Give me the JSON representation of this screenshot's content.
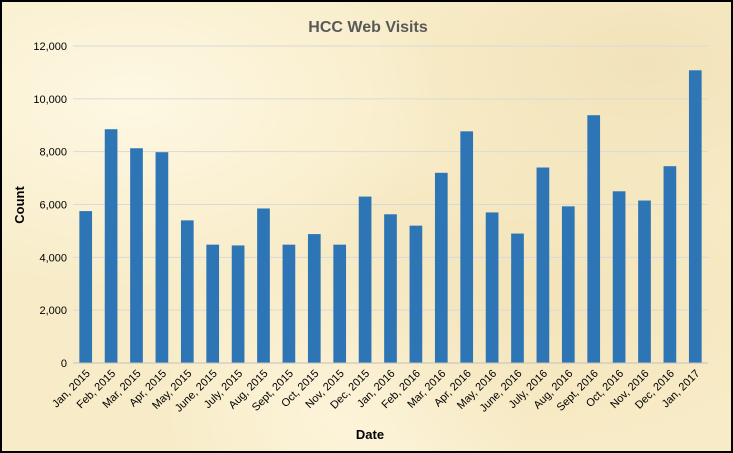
{
  "chart_data": {
    "type": "bar",
    "title": "HCC Web Visits",
    "xlabel": "Date",
    "ylabel": "Count",
    "ylim": [
      0,
      12000
    ],
    "yticks": [
      0,
      2000,
      4000,
      6000,
      8000,
      10000,
      12000
    ],
    "ytick_labels": [
      "0",
      "2,000",
      "4,000",
      "6,000",
      "8,000",
      "10,000",
      "12,000"
    ],
    "grid": true,
    "legend": "none",
    "bar_color": "#2e75b6",
    "categories": [
      "Jan, 2015",
      "Feb, 2015",
      "Mar, 2015",
      "Apr, 2015",
      "May, 2015",
      "June, 2015",
      "July, 2015",
      "Aug, 2015",
      "Sept, 2015",
      "Oct, 2015",
      "Nov, 2015",
      "Dec, 2015",
      "Jan, 2016",
      "Feb, 2016",
      "Mar, 2016",
      "Apr, 2016",
      "May, 2016",
      "June, 2016",
      "July, 2016",
      "Aug, 2016",
      "Sept, 2016",
      "Oct, 2016",
      "Nov, 2016",
      "Dec, 2016",
      "Jan, 2017"
    ],
    "values": [
      5750,
      8850,
      8130,
      7980,
      5400,
      4480,
      4450,
      5850,
      4480,
      4880,
      4480,
      6300,
      5630,
      5200,
      7200,
      8770,
      5700,
      4900,
      7400,
      5930,
      9380,
      6500,
      6150,
      7450,
      11080
    ]
  }
}
